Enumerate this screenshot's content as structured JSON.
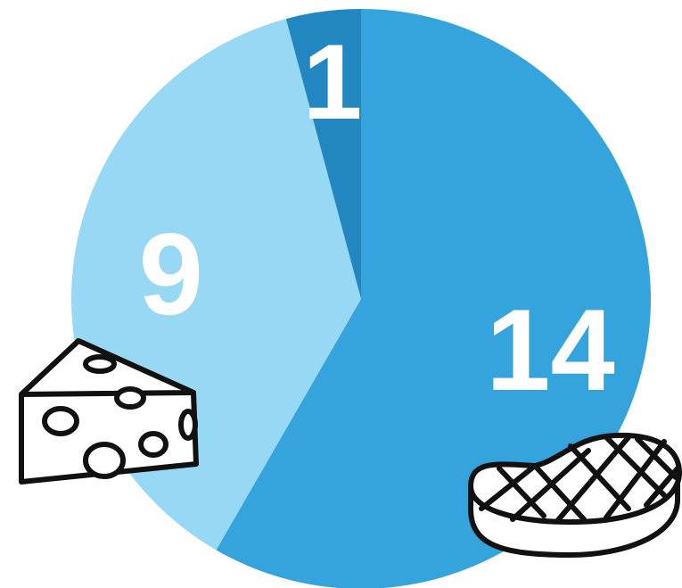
{
  "chart_data": {
    "type": "pie",
    "start_angle_deg": 0,
    "direction": "clockwise",
    "slices": [
      {
        "label": "14",
        "value": 14,
        "color": "#35a4dc",
        "icon": "steak-icon"
      },
      {
        "label": "9",
        "value": 9,
        "color": "#97d8f4",
        "icon": "cheese-icon"
      },
      {
        "label": "1",
        "value": 1,
        "color": "#2286c0",
        "icon": ""
      }
    ]
  }
}
